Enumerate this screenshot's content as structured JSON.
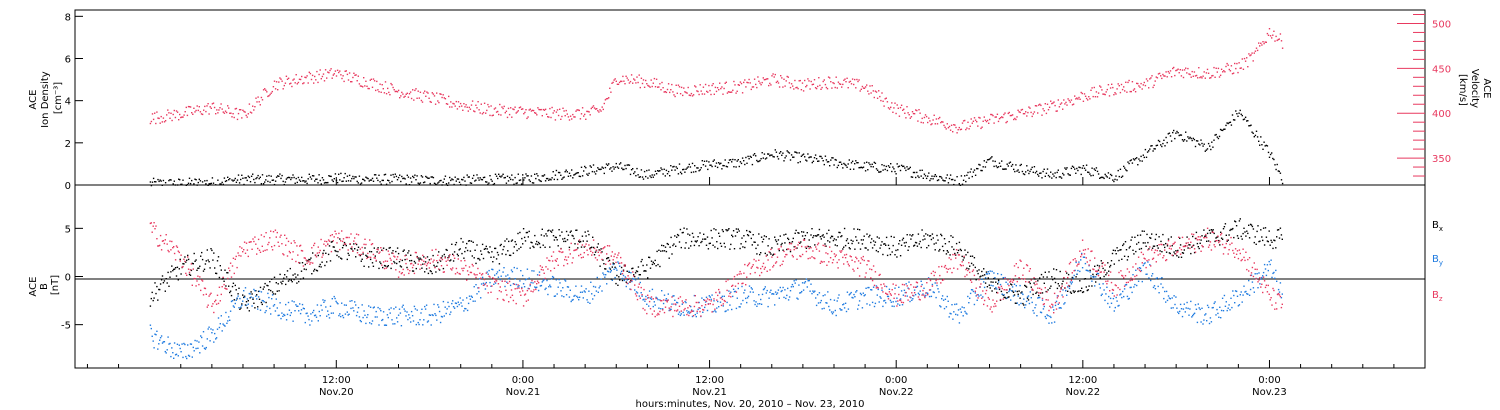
{
  "chart_data": [
    {
      "type": "scatter",
      "panel": "top",
      "left_axis": {
        "label_lines": [
          "ACE",
          "Ion Density",
          "[cm⁻³]"
        ],
        "ylim": [
          0,
          8.3
        ],
        "ticks": [
          0,
          2,
          4,
          6,
          8
        ],
        "tick_labels": [
          "0",
          "2",
          "4",
          "6",
          "8"
        ],
        "color": "#000000"
      },
      "right_axis": {
        "label_lines": [
          "ACE",
          "Velocity",
          "[km/s]"
        ],
        "ylim": [
          320,
          515
        ],
        "ticks": [
          350,
          400,
          450,
          500
        ],
        "tick_labels": [
          "350",
          "400",
          "450",
          "500"
        ],
        "color": "#e8395f"
      },
      "series": [
        {
          "axis": "left",
          "color": "#000000",
          "x_hours": [
            0,
            2,
            4,
            6,
            8,
            10,
            12,
            14,
            16,
            18,
            20,
            22,
            24,
            26,
            28,
            30,
            32,
            34,
            36,
            38,
            40,
            42,
            44,
            46,
            48,
            50,
            52,
            54,
            56,
            58,
            60,
            62,
            64,
            66,
            68,
            70,
            72,
            72.8
          ],
          "values": [
            0.1,
            0.1,
            0.15,
            0.3,
            0.3,
            0.3,
            0.35,
            0.3,
            0.3,
            0.25,
            0.25,
            0.3,
            0.3,
            0.5,
            0.7,
            0.9,
            0.5,
            0.8,
            1.0,
            1.1,
            1.5,
            1.3,
            1.1,
            0.9,
            0.8,
            0.5,
            0.2,
            1.2,
            0.8,
            0.5,
            0.8,
            0.4,
            1.5,
            2.5,
            1.8,
            3.5,
            1.5,
            0.3
          ]
        },
        {
          "axis": "right",
          "color": "#e8395f",
          "x_hours": [
            0,
            2,
            4,
            6,
            8,
            10,
            12,
            14,
            16,
            18,
            20,
            22,
            24,
            26,
            28,
            29,
            30,
            32,
            34,
            36,
            38,
            40,
            42,
            44,
            46,
            48,
            50,
            52,
            54,
            56,
            58,
            60,
            62,
            64,
            66,
            68,
            70,
            71,
            72,
            72.8
          ],
          "values": [
            395,
            400,
            407,
            398,
            433,
            440,
            445,
            435,
            425,
            418,
            410,
            404,
            402,
            400,
            400,
            404,
            440,
            435,
            425,
            428,
            430,
            438,
            432,
            436,
            430,
            405,
            395,
            385,
            393,
            400,
            408,
            420,
            428,
            433,
            448,
            445,
            452,
            465,
            492,
            480
          ]
        }
      ]
    },
    {
      "type": "scatter",
      "panel": "bottom",
      "left_axis": {
        "label_lines": [
          "ACE",
          "B",
          "[nT]"
        ],
        "ylim": [
          -9.5,
          9.5
        ],
        "ticks": [
          -5,
          0,
          5
        ],
        "tick_labels": [
          "-5",
          "0",
          "5"
        ]
      },
      "zero_line": true,
      "series": [
        {
          "name": "B",
          "subscript": "x",
          "color": "#000000",
          "x_hours": [
            0,
            2,
            4,
            6,
            8,
            10,
            12,
            14,
            16,
            18,
            20,
            22,
            24,
            26,
            28,
            30,
            32,
            34,
            36,
            38,
            40,
            42,
            44,
            46,
            48,
            50,
            52,
            54,
            56,
            58,
            60,
            62,
            64,
            66,
            68,
            70,
            72,
            72.8
          ],
          "values": [
            -2,
            1,
            2,
            -3,
            -1,
            1,
            3,
            2,
            2,
            1,
            3,
            2,
            4,
            4,
            4,
            0,
            1,
            4,
            4,
            4,
            3,
            4,
            4,
            4,
            3,
            4,
            3,
            -1,
            -2,
            0,
            -1,
            2,
            4,
            3,
            4,
            5,
            4,
            4
          ]
        },
        {
          "name": "B",
          "subscript": "y",
          "color": "#1f7be0",
          "x_hours": [
            0,
            2,
            4,
            6,
            8,
            10,
            12,
            14,
            16,
            18,
            20,
            22,
            24,
            26,
            28,
            30,
            32,
            34,
            36,
            38,
            40,
            42,
            44,
            46,
            48,
            50,
            52,
            54,
            56,
            58,
            60,
            62,
            64,
            66,
            68,
            70,
            72,
            72.8
          ],
          "values": [
            -6,
            -8,
            -6,
            -2,
            -3,
            -4,
            -3,
            -4,
            -4,
            -4,
            -3,
            0,
            0,
            -1,
            -2,
            1,
            -2,
            -3,
            -3,
            -2,
            -2,
            -1,
            -3,
            -2,
            -2,
            -1,
            -4,
            0,
            -2,
            -4,
            2,
            -3,
            1,
            -3,
            -4,
            -2,
            1,
            -2
          ]
        },
        {
          "name": "B",
          "subscript": "z",
          "color": "#e8395f",
          "x_hours": [
            0,
            2,
            4,
            6,
            8,
            10,
            12,
            14,
            16,
            18,
            20,
            22,
            24,
            26,
            28,
            30,
            32,
            34,
            36,
            38,
            40,
            42,
            44,
            46,
            48,
            50,
            52,
            54,
            56,
            58,
            60,
            62,
            64,
            66,
            68,
            70,
            72,
            72.8
          ],
          "values": [
            5,
            2,
            -3,
            3,
            4,
            2,
            4,
            3,
            1,
            2,
            1,
            -1,
            -2,
            2,
            3,
            2,
            -3,
            -3,
            -3,
            0,
            2,
            3,
            2,
            1,
            -2,
            -1,
            2,
            -3,
            1,
            -3,
            3,
            -1,
            2,
            3,
            4,
            3,
            -2,
            -3
          ]
        }
      ]
    }
  ],
  "x_axis": {
    "xlim_hours": [
      -4.8,
      82
    ],
    "ticks_hours": [
      12,
      24,
      36,
      48,
      60,
      72
    ],
    "tick_labels": [
      [
        "12:00",
        "Nov.20"
      ],
      [
        "0:00",
        "Nov.21"
      ],
      [
        "12:00",
        "Nov.21"
      ],
      [
        "0:00",
        "Nov.22"
      ],
      [
        "12:00",
        "Nov.22"
      ],
      [
        "0:00",
        "Nov.23"
      ]
    ],
    "title": "hours:minutes, Nov. 20, 2010 – Nov. 23, 2010"
  }
}
